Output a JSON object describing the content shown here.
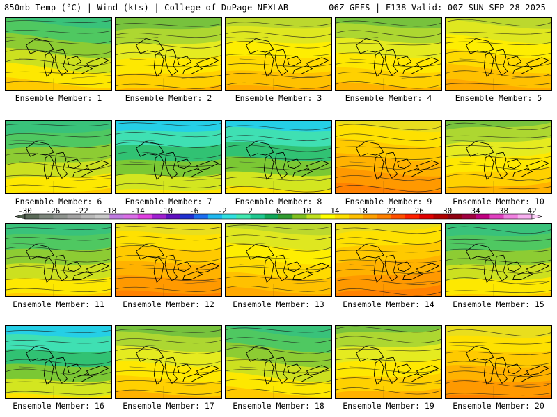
{
  "header": {
    "left": "850mb Temp (°C) | Wind (kts) | College of DuPage NEXLAB",
    "right": "06Z GEFS | F138 Valid: 00Z SUN SEP 28 2025"
  },
  "panels": [
    {
      "label": "Ensemble Member: 1",
      "tone": "cool"
    },
    {
      "label": "Ensemble Member: 2",
      "tone": "mixed"
    },
    {
      "label": "Ensemble Member: 3",
      "tone": "warm"
    },
    {
      "label": "Ensemble Member: 4",
      "tone": "mixed"
    },
    {
      "label": "Ensemble Member: 5",
      "tone": "warm"
    },
    {
      "label": "Ensemble Member: 6",
      "tone": "cool"
    },
    {
      "label": "Ensemble Member: 7",
      "tone": "cold"
    },
    {
      "label": "Ensemble Member: 8",
      "tone": "cold"
    },
    {
      "label": "Ensemble Member: 9",
      "tone": "hot"
    },
    {
      "label": "Ensemble Member: 10",
      "tone": "mixed"
    },
    {
      "label": "Ensemble Member: 11",
      "tone": "cool"
    },
    {
      "label": "Ensemble Member: 12",
      "tone": "hot"
    },
    {
      "label": "Ensemble Member: 13",
      "tone": "warm"
    },
    {
      "label": "Ensemble Member: 14",
      "tone": "hot"
    },
    {
      "label": "Ensemble Member: 15",
      "tone": "cool"
    },
    {
      "label": "Ensemble Member: 16",
      "tone": "cold"
    },
    {
      "label": "Ensemble Member: 17",
      "tone": "mixed"
    },
    {
      "label": "Ensemble Member: 18",
      "tone": "cool"
    },
    {
      "label": "Ensemble Member: 19",
      "tone": "mixed"
    },
    {
      "label": "Ensemble Member: 20",
      "tone": "hot"
    }
  ],
  "colorbar": {
    "ticks": [
      "-30",
      "-26",
      "-22",
      "-18",
      "-14",
      "-10",
      "-6",
      "-2",
      "2",
      "6",
      "10",
      "14",
      "18",
      "22",
      "26",
      "30",
      "34",
      "38",
      "42"
    ],
    "colors": [
      "#5a6a58",
      "#7c857b",
      "#8e938e",
      "#a3a3a3",
      "#b8b8b8",
      "#c9c9c9",
      "#c07be0",
      "#d96ee6",
      "#e040e0",
      "#a020d0",
      "#6010c0",
      "#2030d0",
      "#1c6ef0",
      "#20b8f0",
      "#30e0e0",
      "#40e8b0",
      "#20c890",
      "#10a858",
      "#309a30",
      "#80c020",
      "#c0e020",
      "#ffff00",
      "#ffe000",
      "#ffc000",
      "#ffa000",
      "#ff8000",
      "#ff5000",
      "#ff2000",
      "#e00000",
      "#b00000",
      "#900010",
      "#a00040",
      "#c00080",
      "#e040c0",
      "#f080e0",
      "#f8b0f0"
    ]
  }
}
